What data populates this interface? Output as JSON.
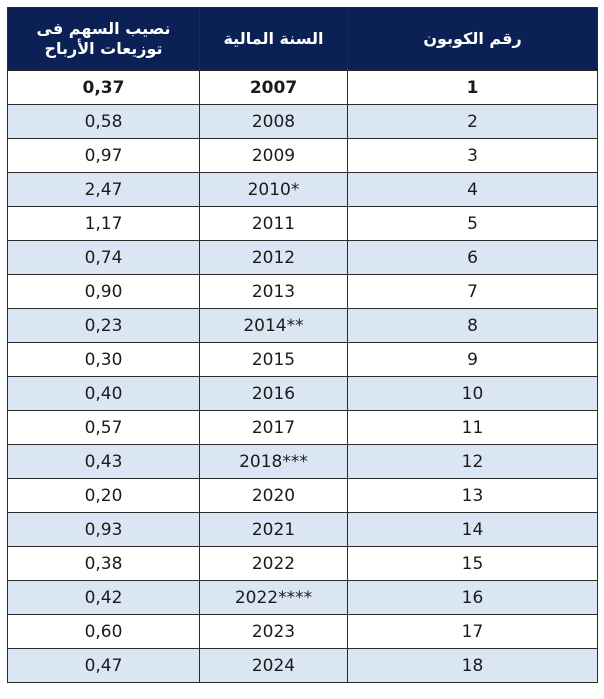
{
  "headers": {
    "share": "نصيب السهم فى توزيعات الأرباح",
    "year": "السنة المالية",
    "coupon": "رقم الكوبون"
  },
  "rows": [
    {
      "share": "0,37",
      "year": "2007",
      "coupon": "1"
    },
    {
      "share": "0,58",
      "year": "2008",
      "coupon": "2"
    },
    {
      "share": "0,97",
      "year": "2009",
      "coupon": "3"
    },
    {
      "share": "2,47",
      "year": "2010*",
      "coupon": "4"
    },
    {
      "share": "1,17",
      "year": "2011",
      "coupon": "5"
    },
    {
      "share": "0,74",
      "year": "2012",
      "coupon": "6"
    },
    {
      "share": "0,90",
      "year": "2013",
      "coupon": "7"
    },
    {
      "share": "0,23",
      "year": "2014**",
      "coupon": "8"
    },
    {
      "share": "0,30",
      "year": "2015",
      "coupon": "9"
    },
    {
      "share": "0,40",
      "year": "2016",
      "coupon": "10"
    },
    {
      "share": "0,57",
      "year": "2017",
      "coupon": "11"
    },
    {
      "share": "0,43",
      "year": "2018***",
      "coupon": "12"
    },
    {
      "share": "0,20",
      "year": "2020",
      "coupon": "13"
    },
    {
      "share": "0,93",
      "year": "2021",
      "coupon": "14"
    },
    {
      "share": "0,38",
      "year": "2022",
      "coupon": "15"
    },
    {
      "share": "0,42",
      "year": "2022****",
      "coupon": "16"
    },
    {
      "share": "0,60",
      "year": "2023",
      "coupon": "17"
    },
    {
      "share": "0,47",
      "year": "2024",
      "coupon": "18"
    }
  ]
}
